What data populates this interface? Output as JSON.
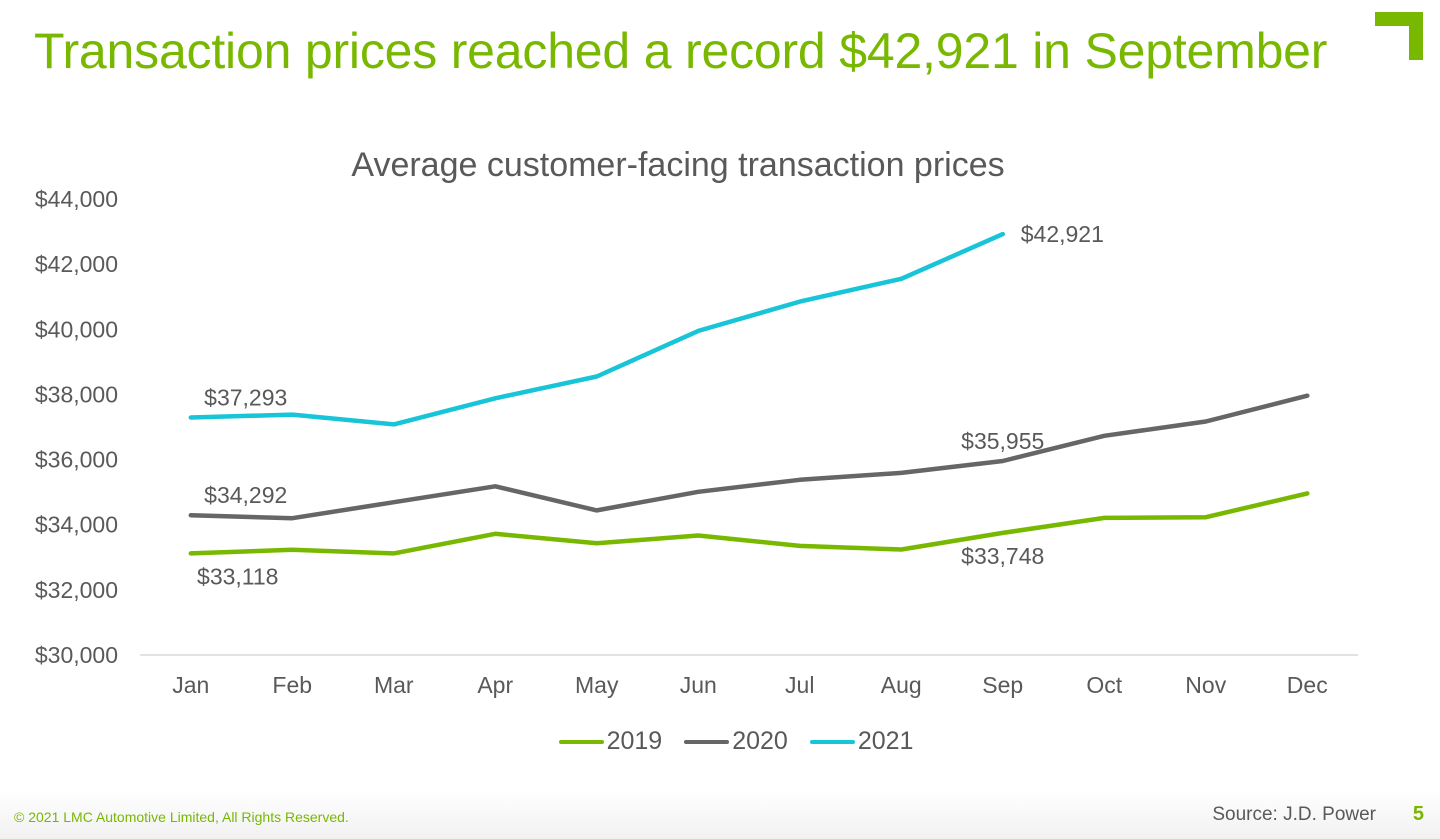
{
  "slide": {
    "title": "Transaction prices reached a record $42,921 in September",
    "brand_color": "#78b800",
    "footer": {
      "copyright": "© 2021 LMC Automotive Limited, All Rights Reserved.",
      "source": "Source: J.D. Power",
      "page_number": "5"
    }
  },
  "chart_data": {
    "type": "line",
    "title": "Average customer-facing transaction prices",
    "xlabel": "",
    "ylabel": "",
    "categories": [
      "Jan",
      "Feb",
      "Mar",
      "Apr",
      "May",
      "Jun",
      "Jul",
      "Aug",
      "Sep",
      "Oct",
      "Nov",
      "Dec"
    ],
    "ylim": [
      30000,
      44000
    ],
    "yticks": [
      30000,
      32000,
      34000,
      36000,
      38000,
      40000,
      42000,
      44000
    ],
    "ytick_labels": [
      "$30,000",
      "$32,000",
      "$34,000",
      "$36,000",
      "$38,000",
      "$40,000",
      "$42,000",
      "$44,000"
    ],
    "grid": false,
    "legend_position": "bottom",
    "series": [
      {
        "name": "2019",
        "color": "#78b800",
        "values": [
          33118,
          33230,
          33120,
          33720,
          33430,
          33670,
          33350,
          33240,
          33748,
          34210,
          34230,
          34960
        ]
      },
      {
        "name": "2020",
        "color": "#666666",
        "values": [
          34292,
          34200,
          34690,
          35180,
          34440,
          35010,
          35380,
          35590,
          35955,
          36730,
          37170,
          37960
        ]
      },
      {
        "name": "2021",
        "color": "#17c4d8",
        "values": [
          37293,
          37380,
          37080,
          37880,
          38550,
          39950,
          40850,
          41550,
          42921,
          null,
          null,
          null
        ]
      }
    ],
    "annotations": [
      {
        "series": "2021",
        "month": "Jan",
        "text": "$37,293",
        "placement": "above"
      },
      {
        "series": "2021",
        "month": "Sep",
        "text": "$42,921",
        "placement": "right"
      },
      {
        "series": "2020",
        "month": "Jan",
        "text": "$34,292",
        "placement": "above"
      },
      {
        "series": "2020",
        "month": "Sep",
        "text": "$35,955",
        "placement": "above"
      },
      {
        "series": "2019",
        "month": "Jan",
        "text": "$33,118",
        "placement": "below"
      },
      {
        "series": "2019",
        "month": "Sep",
        "text": "$33,748",
        "placement": "below"
      }
    ]
  }
}
